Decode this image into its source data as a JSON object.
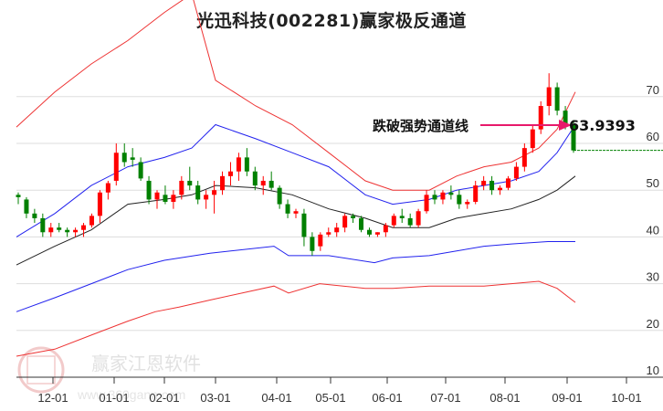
{
  "title": "光迅科技(002281)赢家极反通道",
  "watermark": {
    "brand": "赢家江恩软件",
    "url": "www.360gann.com",
    "seal": [
      "江",
      "赢",
      "恩",
      "家"
    ]
  },
  "annotation": {
    "label": "跌破强势通道线",
    "value": "63.9393",
    "arrow_color": "#e8196b"
  },
  "colors": {
    "up": "#ff0000",
    "down": "#008000",
    "outer_band": "#ee3333",
    "inner_band": "#2222ee",
    "middle": "#222222",
    "grid": "#dddddd",
    "axis": "#333333",
    "last_price_line": "#008000"
  },
  "chart_data": {
    "type": "candlestick",
    "title": "光迅科技(002281)赢家极反通道",
    "xlabel": "",
    "ylabel": "",
    "ylim": [
      10,
      75
    ],
    "y_ticks": [
      10,
      20,
      30,
      40,
      50,
      60,
      70
    ],
    "x_ticks": [
      "12-01",
      "01-01",
      "02-01",
      "03-01",
      "04-01",
      "05-01",
      "06-01",
      "07-01",
      "08-01",
      "09-01",
      "10-01"
    ],
    "grid": true,
    "legend": "none",
    "annotations": [
      {
        "text": "跌破强势通道线",
        "value": 63.9393
      }
    ],
    "last_price_level": 58.5,
    "candles_ohlc_sample": [
      [
        49,
        49.5,
        47,
        48.5
      ],
      [
        48,
        48.5,
        44,
        45
      ],
      [
        45,
        46,
        43,
        44
      ],
      [
        44,
        45,
        40,
        41
      ],
      [
        41,
        43,
        40,
        42
      ],
      [
        42,
        43,
        41,
        41.5
      ],
      [
        41.5,
        42,
        40,
        41
      ],
      [
        41,
        42,
        40,
        41.5
      ],
      [
        41.5,
        43,
        40,
        42.5
      ],
      [
        42.5,
        45,
        42,
        44.5
      ],
      [
        44.5,
        50,
        43,
        49.5
      ],
      [
        49.5,
        52,
        48,
        51.5
      ],
      [
        52,
        60,
        51,
        58
      ],
      [
        58,
        60,
        55,
        56
      ],
      [
        57,
        59,
        55,
        56.5
      ],
      [
        56,
        57,
        52,
        52.5
      ],
      [
        52,
        53,
        47,
        48
      ],
      [
        48,
        50,
        46,
        49.5
      ],
      [
        49,
        51,
        47,
        47.5
      ],
      [
        47.5,
        50,
        46,
        49
      ],
      [
        49,
        53,
        48,
        52
      ],
      [
        52,
        55,
        50,
        51
      ],
      [
        51,
        52,
        47,
        48
      ],
      [
        48,
        50,
        46,
        49
      ],
      [
        49,
        52,
        45,
        50
      ],
      [
        50,
        54,
        49,
        53
      ],
      [
        53,
        56,
        51,
        54
      ],
      [
        54,
        58,
        52,
        57
      ],
      [
        57,
        59,
        53,
        54
      ],
      [
        54,
        55,
        50,
        51
      ],
      [
        51,
        53,
        49,
        52
      ],
      [
        52,
        54,
        50,
        50.5
      ],
      [
        50.5,
        51,
        46,
        47
      ],
      [
        47,
        48,
        44,
        45
      ],
      [
        45,
        46,
        44,
        45.5
      ],
      [
        45,
        46,
        38,
        40
      ],
      [
        40,
        41,
        36,
        37
      ],
      [
        38,
        41,
        37,
        40.5
      ],
      [
        40.5,
        42,
        40,
        41
      ],
      [
        41,
        43,
        40,
        42
      ],
      [
        42,
        45,
        41,
        44.5
      ],
      [
        44.5,
        45,
        43,
        44
      ],
      [
        44,
        44.5,
        41,
        41.5
      ],
      [
        41.5,
        42,
        40,
        40.5
      ],
      [
        40.5,
        41,
        40,
        41
      ],
      [
        41,
        43,
        40,
        42.5
      ],
      [
        42.5,
        45,
        42,
        44.5
      ],
      [
        44.5,
        46,
        43,
        44
      ],
      [
        44,
        45,
        42,
        42.5
      ],
      [
        42.5,
        46,
        42,
        45.5
      ],
      [
        45.5,
        50,
        45,
        49
      ],
      [
        49,
        50,
        47,
        48
      ],
      [
        48,
        50,
        47,
        49.5
      ],
      [
        49.5,
        51,
        48,
        49
      ],
      [
        49,
        50,
        46,
        47
      ],
      [
        47,
        48,
        46,
        47.5
      ],
      [
        47.5,
        52,
        47,
        51
      ],
      [
        51,
        53,
        50,
        52
      ],
      [
        52,
        53,
        49,
        50
      ],
      [
        50,
        51,
        49,
        50.5
      ],
      [
        50.5,
        53,
        50,
        52.5
      ],
      [
        52.5,
        56,
        52,
        55
      ],
      [
        55,
        60,
        54,
        59
      ],
      [
        59,
        64,
        58,
        63
      ],
      [
        63,
        69,
        62,
        68
      ],
      [
        68,
        75,
        66,
        72
      ],
      [
        72,
        73,
        66,
        67
      ],
      [
        67,
        68,
        63,
        64
      ],
      [
        64,
        65,
        58,
        58.5
      ]
    ],
    "series": [
      {
        "name": "upper_outer_band",
        "color": "#ee3333",
        "points": [
          [
            18,
            63.5
          ],
          [
            60,
            71
          ],
          [
            100,
            77
          ],
          [
            140,
            82
          ],
          [
            180,
            88
          ],
          [
            210,
            92
          ],
          [
            236,
            73.5
          ],
          [
            280,
            68
          ],
          [
            320,
            64
          ],
          [
            360,
            58
          ],
          [
            400,
            52
          ],
          [
            430,
            50
          ],
          [
            470,
            50
          ],
          [
            500,
            53
          ],
          [
            530,
            55
          ],
          [
            560,
            56
          ],
          [
            590,
            59
          ],
          [
            610,
            63
          ],
          [
            630,
            71
          ]
        ]
      },
      {
        "name": "upper_inner_band",
        "color": "#2222ee",
        "points": [
          [
            18,
            40
          ],
          [
            60,
            45
          ],
          [
            100,
            51
          ],
          [
            140,
            55
          ],
          [
            180,
            57
          ],
          [
            210,
            59
          ],
          [
            236,
            64
          ],
          [
            280,
            61
          ],
          [
            320,
            58
          ],
          [
            360,
            55
          ],
          [
            400,
            49
          ],
          [
            430,
            47
          ],
          [
            470,
            48
          ],
          [
            500,
            50
          ],
          [
            530,
            51
          ],
          [
            560,
            52
          ],
          [
            590,
            54
          ],
          [
            610,
            58
          ],
          [
            630,
            64
          ]
        ]
      },
      {
        "name": "middle_line",
        "color": "#222222",
        "points": [
          [
            18,
            34
          ],
          [
            60,
            38
          ],
          [
            100,
            41.5
          ],
          [
            140,
            47
          ],
          [
            180,
            48
          ],
          [
            210,
            49
          ],
          [
            236,
            51
          ],
          [
            280,
            50.5
          ],
          [
            320,
            49
          ],
          [
            360,
            46
          ],
          [
            400,
            44
          ],
          [
            430,
            42
          ],
          [
            470,
            42
          ],
          [
            500,
            44
          ],
          [
            530,
            45
          ],
          [
            560,
            46
          ],
          [
            590,
            48
          ],
          [
            610,
            50
          ],
          [
            630,
            53
          ]
        ]
      },
      {
        "name": "lower_inner_band",
        "color": "#2222ee",
        "points": [
          [
            18,
            24
          ],
          [
            60,
            27
          ],
          [
            100,
            30
          ],
          [
            140,
            33
          ],
          [
            180,
            35
          ],
          [
            230,
            36.5
          ],
          [
            300,
            38
          ],
          [
            316,
            36
          ],
          [
            360,
            36
          ],
          [
            410,
            34.5
          ],
          [
            430,
            35.5
          ],
          [
            470,
            36
          ],
          [
            500,
            37
          ],
          [
            530,
            38
          ],
          [
            560,
            38.5
          ],
          [
            600,
            39
          ],
          [
            630,
            39
          ]
        ]
      },
      {
        "name": "lower_outer_band",
        "color": "#ee3333",
        "points": [
          [
            18,
            14.5
          ],
          [
            60,
            16
          ],
          [
            100,
            19
          ],
          [
            140,
            22
          ],
          [
            170,
            24
          ],
          [
            196,
            25
          ],
          [
            230,
            26.5
          ],
          [
            300,
            29.5
          ],
          [
            316,
            28
          ],
          [
            350,
            30
          ],
          [
            400,
            29
          ],
          [
            430,
            29
          ],
          [
            470,
            29.5
          ],
          [
            500,
            29.5
          ],
          [
            530,
            29.5
          ],
          [
            560,
            30
          ],
          [
            590,
            30.5
          ],
          [
            610,
            29
          ],
          [
            630,
            26
          ]
        ]
      }
    ]
  }
}
